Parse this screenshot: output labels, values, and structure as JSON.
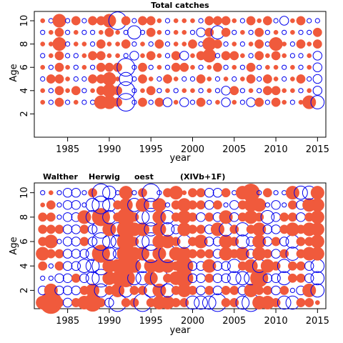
{
  "colors": {
    "positive": "#f05a3c",
    "negative": "#0000ee",
    "axis": "#000000"
  },
  "chart_data": [
    {
      "type": "scatter",
      "title": "Total catches",
      "subtitle": "",
      "xlabel": "year",
      "ylabel": "Age",
      "xlim": [
        1981,
        2016
      ],
      "ylim": [
        0,
        10.8
      ],
      "xticks": [
        1985,
        1990,
        1995,
        2000,
        2005,
        2010,
        2015
      ],
      "yticks": [
        2,
        4,
        6,
        8,
        10
      ],
      "x_start": 1982,
      "ages": [
        3,
        4,
        5,
        6,
        7,
        8,
        9,
        10
      ],
      "residuals": {
        "10": [
          1,
          -1,
          3,
          -1,
          2,
          -1,
          2,
          2,
          3,
          -4,
          2,
          -1,
          2,
          2,
          1,
          -1,
          1,
          1,
          1,
          -1,
          2,
          2,
          2,
          1,
          -1,
          2,
          1,
          2,
          -1,
          -2,
          1,
          2,
          -1,
          -1
        ],
        "9": [
          -1,
          1,
          2,
          -1,
          1,
          -1,
          -1,
          1,
          2,
          1,
          -1,
          -3,
          -1,
          2,
          1,
          -1,
          1,
          1,
          -1,
          -2,
          2,
          -3,
          2,
          -1,
          1,
          -1,
          2,
          -1,
          1,
          -1,
          1,
          -1,
          -1,
          2
        ],
        "8": [
          1,
          1,
          3,
          -1,
          1,
          1,
          -1,
          2,
          1,
          1,
          2,
          -1,
          1,
          -1,
          2,
          -1,
          1,
          1,
          2,
          -1,
          3,
          2,
          -1,
          1,
          -1,
          1,
          2,
          -1,
          3,
          1,
          -1,
          2,
          1,
          2
        ],
        "7": [
          -1,
          1,
          2,
          -1,
          -1,
          1,
          2,
          2,
          1,
          1,
          -1,
          -2,
          1,
          2,
          1,
          -1,
          2,
          -2,
          1,
          2,
          3,
          -1,
          2,
          2,
          1,
          -1,
          2,
          1,
          2,
          1,
          -1,
          -1,
          1,
          -2
        ],
        "6": [
          1,
          -1,
          2,
          1,
          -1,
          1,
          -1,
          2,
          2,
          2,
          -4,
          -1,
          2,
          -1,
          1,
          -1,
          2,
          2,
          1,
          -1,
          1,
          2,
          -1,
          1,
          -1,
          2,
          -1,
          1,
          1,
          -1,
          1,
          -1,
          1,
          -2
        ],
        "5": [
          -1,
          2,
          2,
          1,
          -1,
          -1,
          2,
          2,
          3,
          1,
          -3,
          -1,
          2,
          1,
          -1,
          2,
          1,
          -1,
          -1,
          2,
          1,
          -1,
          1,
          -1,
          1,
          2,
          -1,
          2,
          1,
          -1,
          1,
          2,
          -1,
          -2
        ],
        "4": [
          1,
          -1,
          2,
          1,
          2,
          -1,
          1,
          2,
          3,
          2,
          -4,
          -1,
          1,
          2,
          -1,
          1,
          -1,
          1,
          1,
          -1,
          1,
          -1,
          -2,
          2,
          -1,
          1,
          -1,
          2,
          2,
          1,
          1,
          -1,
          1,
          -2
        ],
        "3": [
          1,
          -1,
          2,
          -1,
          1,
          -1,
          -1,
          3,
          3,
          2,
          -4,
          -1,
          2,
          -1,
          2,
          -2,
          1,
          -2,
          -1,
          2,
          -1,
          1,
          -2,
          1,
          -1,
          -2,
          2,
          -1,
          2,
          1,
          -1,
          1,
          3,
          -3
        ]
      }
    },
    {
      "type": "scatter",
      "title": "",
      "subtitle": "",
      "annotations": [
        "Walther",
        "Herwig",
        "oest",
        "(XIVb+1F)"
      ],
      "xlabel": "year",
      "ylabel": "Age",
      "xlim": [
        1981,
        2016
      ],
      "ylim": [
        0.5,
        10.8
      ],
      "xticks": [
        1985,
        1990,
        1995,
        2000,
        2005,
        2010,
        2015
      ],
      "yticks": [
        2,
        4,
        6,
        8,
        10
      ],
      "x_start": 1982,
      "ages": [
        1,
        2,
        3,
        4,
        5,
        6,
        7,
        8,
        9,
        10
      ],
      "residuals": {
        "10": [
          -1,
          1,
          -1,
          -2,
          -2,
          -1,
          2,
          -4,
          -3,
          -1,
          3,
          -1,
          2,
          -4,
          -1,
          2,
          3,
          1,
          2,
          2,
          -2,
          -2,
          2,
          -1,
          3,
          4,
          -1,
          2,
          -1,
          -1,
          3,
          -3,
          -3,
          3
        ],
        "9": [
          1,
          2,
          -1,
          -2,
          -2,
          -1,
          -3,
          -4,
          -3,
          2,
          3,
          -3,
          3,
          -3,
          3,
          -1,
          2,
          3,
          2,
          2,
          -2,
          2,
          -1,
          -2,
          2,
          3,
          3,
          -1,
          -2,
          -1,
          2,
          -2,
          3,
          3
        ],
        "8": [
          2,
          2,
          -1,
          -2,
          -2,
          3,
          -3,
          4,
          -3,
          2,
          4,
          2,
          -3,
          -4,
          3,
          -3,
          2,
          3,
          2,
          -2,
          2,
          -2,
          3,
          -2,
          2,
          3,
          2,
          -3,
          -2,
          2,
          2,
          -2,
          2,
          3
        ],
        "7": [
          2,
          2,
          2,
          -2,
          -2,
          2,
          -2,
          -4,
          3,
          -3,
          4,
          3,
          3,
          -3,
          3,
          -3,
          -2,
          3,
          2,
          2,
          -2,
          3,
          -3,
          2,
          -3,
          2,
          3,
          -2,
          -2,
          2,
          3,
          2,
          3,
          3
        ],
        "6": [
          2,
          3,
          -1,
          -2,
          -2,
          2,
          -2,
          -4,
          -3,
          -3,
          4,
          2,
          -3,
          -4,
          3,
          3,
          2,
          -3,
          2,
          3,
          -2,
          -2,
          3,
          2,
          -3,
          -2,
          3,
          -2,
          2,
          -2,
          -3,
          2,
          2,
          3
        ],
        "5": [
          3,
          2,
          2,
          -2,
          -2,
          -2,
          -3,
          4,
          -3,
          -2,
          4,
          3,
          3,
          -4,
          3,
          -4,
          3,
          3,
          2,
          2,
          2,
          -2,
          3,
          2,
          3,
          -2,
          3,
          2,
          -2,
          2,
          -3,
          2,
          3,
          3
        ],
        "4": [
          2,
          -1,
          2,
          -2,
          -2,
          -3,
          -3,
          -4,
          3,
          3,
          4,
          3,
          -3,
          3,
          3,
          3,
          2,
          4,
          -2,
          -2,
          3,
          -2,
          -2,
          -3,
          2,
          3,
          -3,
          3,
          2,
          -3,
          2,
          2,
          -2,
          -3
        ],
        "3": [
          -1,
          -1,
          -2,
          -2,
          2,
          -2,
          -3,
          -4,
          3,
          3,
          4,
          -3,
          -3,
          3,
          -4,
          2,
          3,
          4,
          -2,
          -2,
          2,
          -2,
          -2,
          -3,
          -3,
          -3,
          4,
          -2,
          -2,
          -3,
          2,
          2,
          -2,
          -3
        ],
        "2": [
          -2,
          3,
          -2,
          -2,
          -2,
          2,
          3,
          -3,
          2,
          3,
          -3,
          2,
          2,
          -3,
          3,
          -3,
          2,
          3,
          2,
          -2,
          2,
          -2,
          2,
          2,
          -2,
          3,
          2,
          2,
          -2,
          2,
          -1,
          -2,
          3,
          -3
        ],
        "1": [
          3,
          5,
          2,
          -2,
          2,
          3,
          4,
          2,
          -2,
          -4,
          2,
          2,
          -4,
          2,
          3,
          3,
          2,
          2,
          -3,
          -3,
          -3,
          -4,
          2,
          2,
          -3,
          -4,
          3,
          3,
          2,
          -3,
          -3,
          2,
          2,
          1
        ]
      }
    }
  ]
}
